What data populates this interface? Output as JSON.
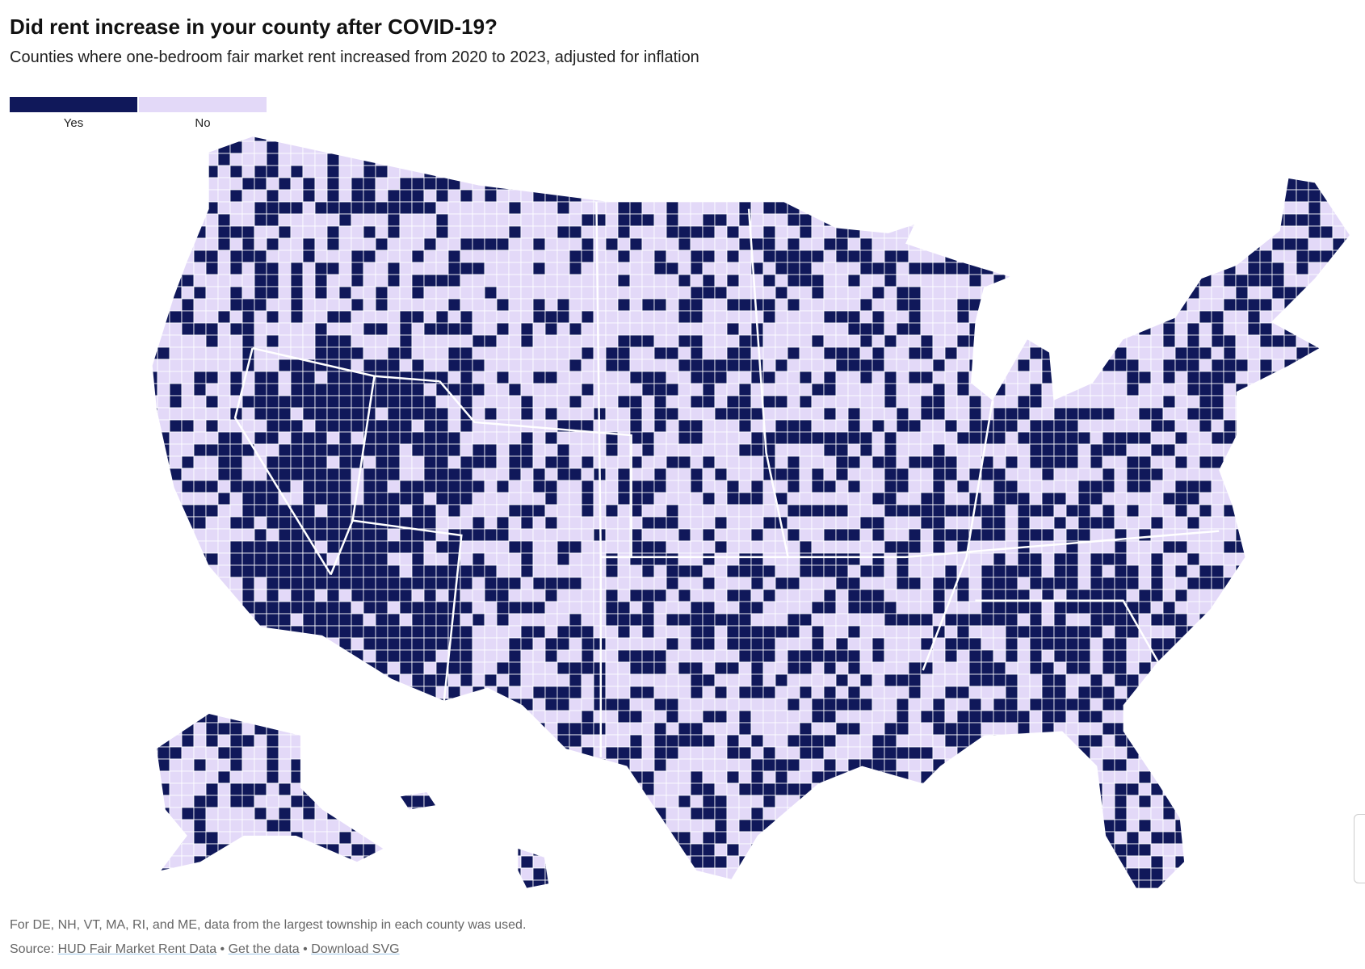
{
  "header": {
    "title": "Did rent increase in your county after COVID-19?",
    "subtitle": "Counties where one-bedroom fair market rent increased from 2020 to 2023, adjusted for inflation"
  },
  "legend": {
    "items": [
      {
        "label": "Yes",
        "color": "#10185a"
      },
      {
        "label": "No",
        "color": "#e3d9f8"
      }
    ]
  },
  "footer": {
    "note": "For DE, NH, VT, MA, RI, and ME, data from the largest township in each county was used.",
    "source_label": "Source:",
    "links": [
      "HUD Fair Market Rent Data",
      "Get the data",
      "Download SVG"
    ],
    "separator": "•"
  }
}
